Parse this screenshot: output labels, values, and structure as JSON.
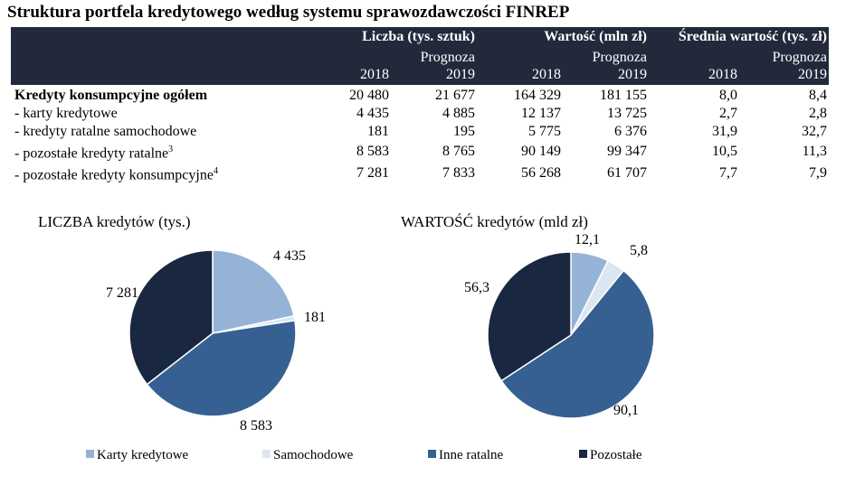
{
  "title": "Struktura portfela kredytowego według systemu sprawozdawczości FINREP",
  "table": {
    "group_headers": [
      "Liczba (tys. sztuk)",
      "Wartość (mln zł)",
      "Średnia wartość (tys. zł)"
    ],
    "sub_headers": [
      {
        "line1": "",
        "line2": "2018"
      },
      {
        "line1": "Prognoza",
        "line2": "2019"
      },
      {
        "line1": "",
        "line2": "2018"
      },
      {
        "line1": "Prognoza",
        "line2": "2019"
      },
      {
        "line1": "",
        "line2": "2018"
      },
      {
        "line1": "Prognoza",
        "line2": "2019"
      }
    ],
    "rows": [
      {
        "label": "Kredyty konsumpcyjne ogółem",
        "sup": "",
        "values": [
          "20 480",
          "21 677",
          "164 329",
          "181 155",
          "8,0",
          "8,4"
        ]
      },
      {
        "label": "- karty kredytowe",
        "sup": "",
        "values": [
          "4 435",
          "4 885",
          "12 137",
          "13 725",
          "2,7",
          "2,8"
        ]
      },
      {
        "label": "- kredyty ratalne samochodowe",
        "sup": "",
        "values": [
          "181",
          "195",
          "5 775",
          "6 376",
          "31,9",
          "32,7"
        ]
      },
      {
        "label": "- pozostałe kredyty ratalne",
        "sup": "3",
        "values": [
          "8 583",
          "8 765",
          "90 149",
          "99 347",
          "10,5",
          "11,3"
        ]
      },
      {
        "label": "- pozostałe kredyty konsumpcyjne",
        "sup": "4",
        "values": [
          "7 281",
          "7 833",
          "56 268",
          "61 707",
          "7,7",
          "7,9"
        ]
      }
    ]
  },
  "chart_data": [
    {
      "type": "pie",
      "title": "LICZBA  kredytów (tys.)",
      "categories": [
        "Karty kredytowe",
        "Samochodowe",
        "Inne ratalne",
        "Pozostałe"
      ],
      "values": [
        4435,
        181,
        8583,
        7281
      ],
      "labels": [
        "4 435",
        "181",
        "8 583",
        "7 281"
      ],
      "colors": [
        "#95b3d7",
        "#dce6f2",
        "#366092",
        "#1a2740"
      ]
    },
    {
      "type": "pie",
      "title": "WARTOŚĆ  kredytów (mld  zł)",
      "categories": [
        "Karty kredytowe",
        "Samochodowe",
        "Inne ratalne",
        "Pozostałe"
      ],
      "values": [
        12.1,
        5.8,
        90.1,
        56.3
      ],
      "labels": [
        "12,1",
        "5,8",
        "90,1",
        "56,3"
      ],
      "colors": [
        "#95b3d7",
        "#dce6f2",
        "#366092",
        "#1a2740"
      ]
    }
  ],
  "legend": {
    "items": [
      {
        "label": "Karty kredytowe",
        "color": "#95b3d7"
      },
      {
        "label": "Samochodowe",
        "color": "#dce6f2"
      },
      {
        "label": "Inne ratalne",
        "color": "#366092"
      },
      {
        "label": "Pozostałe",
        "color": "#1a2740"
      }
    ]
  }
}
